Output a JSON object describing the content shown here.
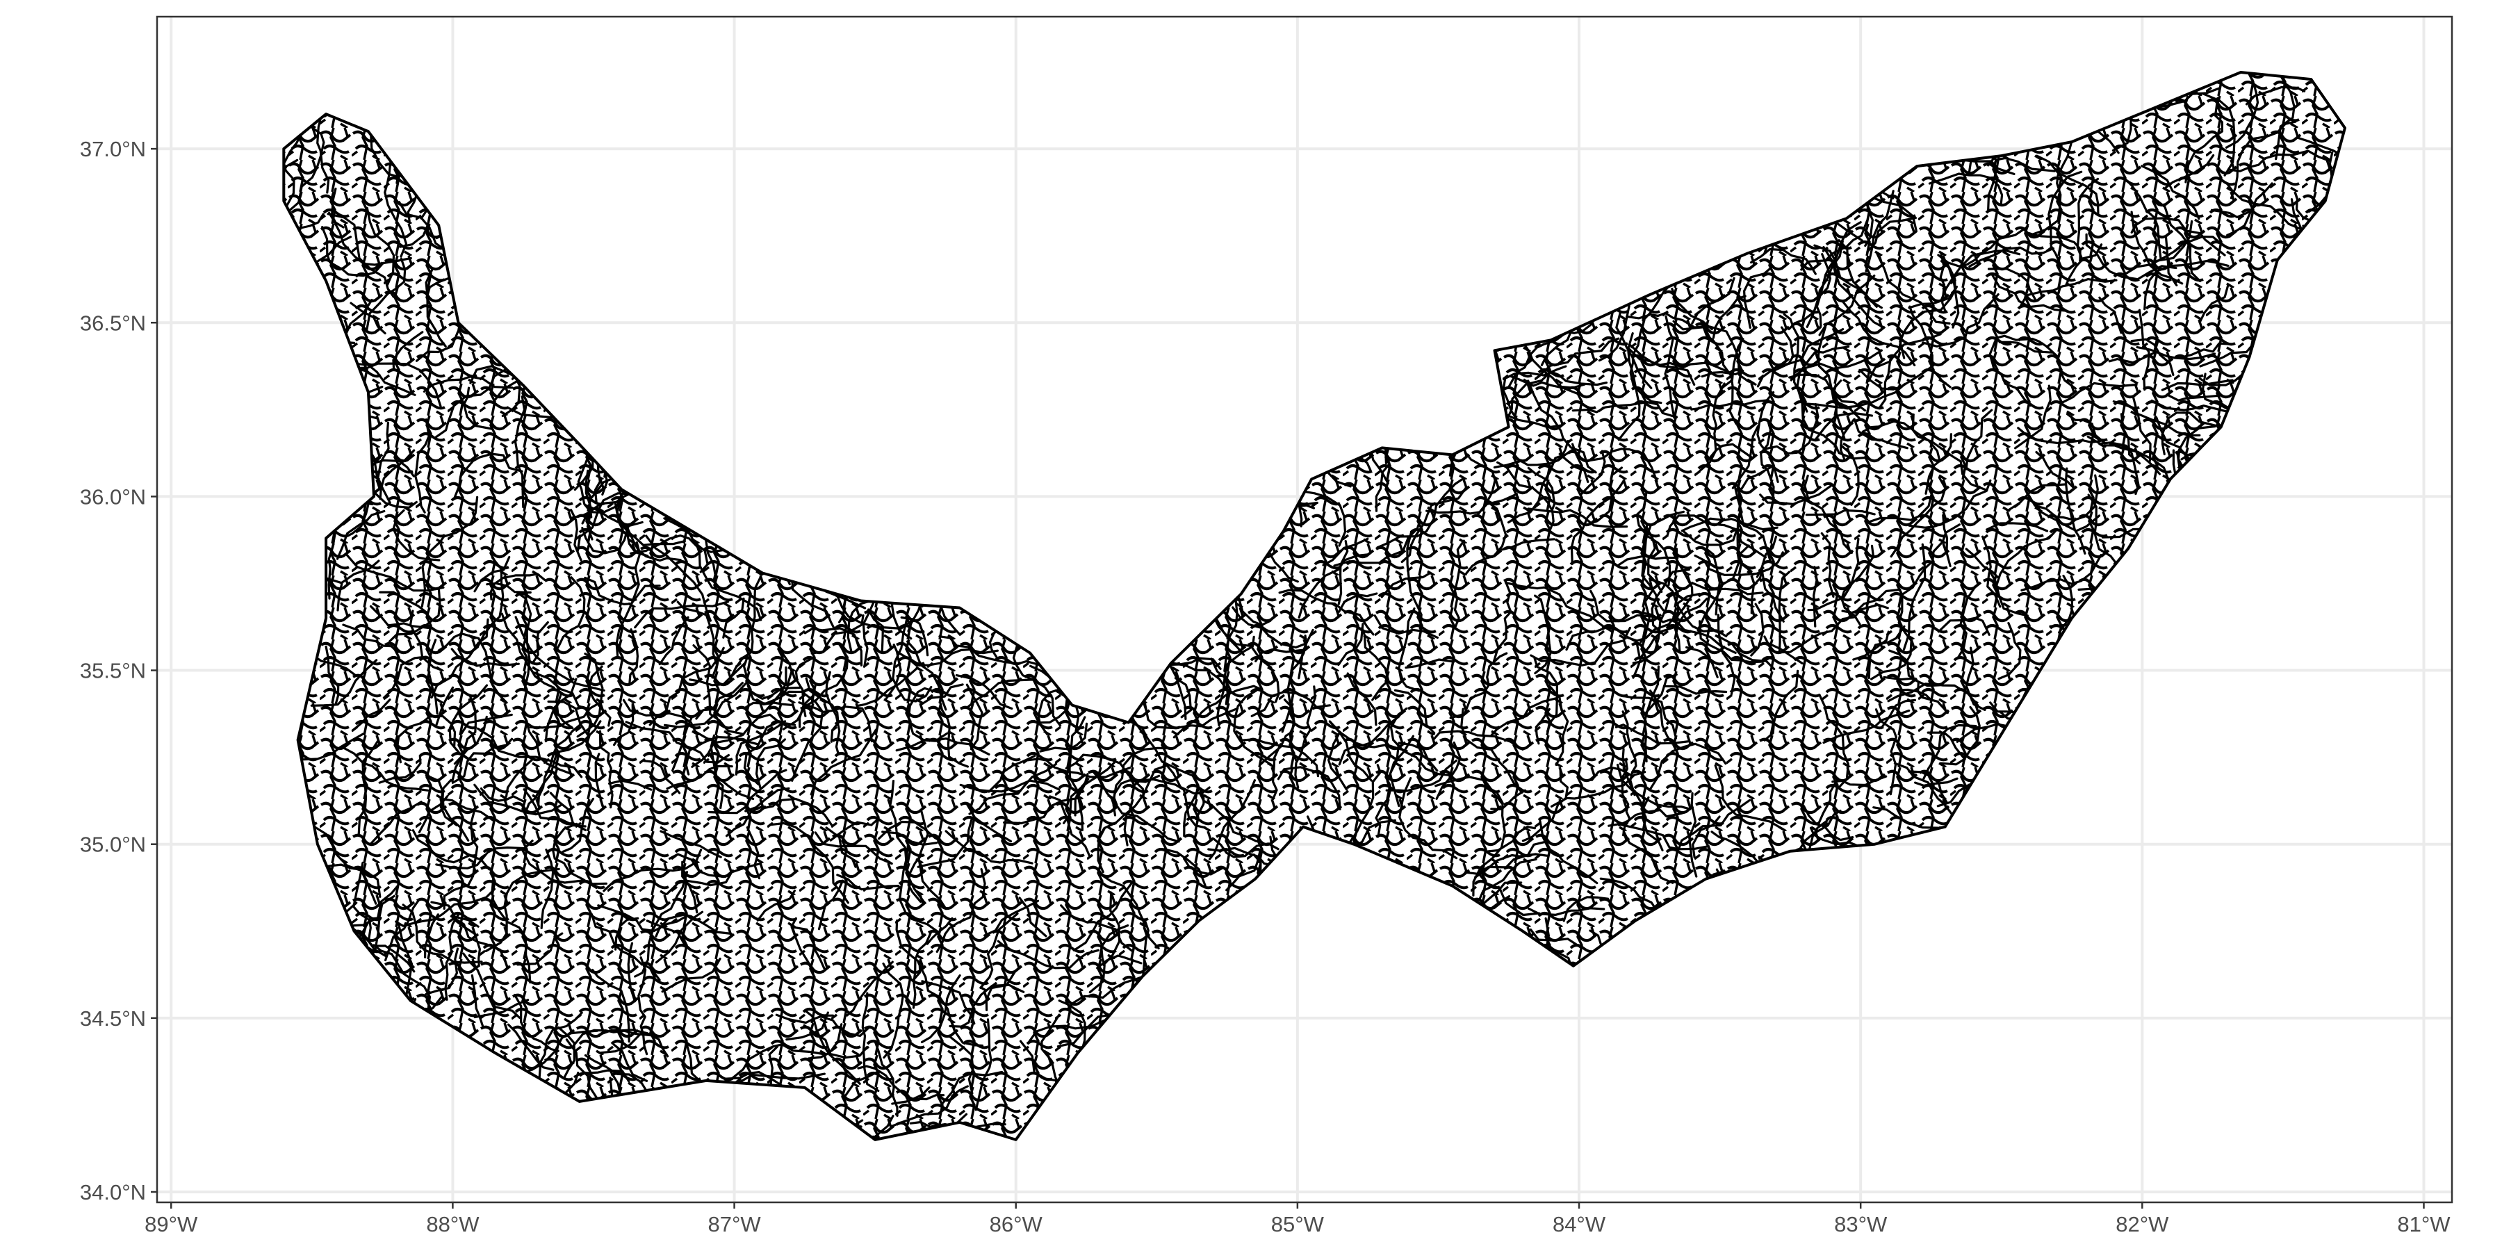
{
  "map": {
    "type": "map",
    "subject": "stream network",
    "x_axis": {
      "ticks": [
        {
          "value": -89,
          "label": "89°W"
        },
        {
          "value": -88,
          "label": "88°W"
        },
        {
          "value": -87,
          "label": "87°W"
        },
        {
          "value": -86,
          "label": "86°W"
        },
        {
          "value": -85,
          "label": "85°W"
        },
        {
          "value": -84,
          "label": "84°W"
        },
        {
          "value": -83,
          "label": "83°W"
        },
        {
          "value": -82,
          "label": "82°W"
        },
        {
          "value": -81,
          "label": "81°W"
        }
      ],
      "range": [
        -89.05,
        -80.9
      ]
    },
    "y_axis": {
      "ticks": [
        {
          "value": 34.0,
          "label": "34.0°N"
        },
        {
          "value": 34.5,
          "label": "34.5°N"
        },
        {
          "value": 35.0,
          "label": "35.0°N"
        },
        {
          "value": 35.5,
          "label": "35.5°N"
        },
        {
          "value": 36.0,
          "label": "36.0°N"
        },
        {
          "value": 36.5,
          "label": "36.5°N"
        },
        {
          "value": 37.0,
          "label": "37.0°N"
        }
      ],
      "range": [
        33.97,
        37.38
      ]
    },
    "grid": true,
    "line_color": "#000000",
    "grid_color": "#ebebeb",
    "background": "#ffffff",
    "region_outline": [
      [
        -88.6,
        37.0
      ],
      [
        -88.45,
        37.1
      ],
      [
        -88.3,
        37.05
      ],
      [
        -88.05,
        36.78
      ],
      [
        -87.98,
        36.5
      ],
      [
        -87.75,
        36.32
      ],
      [
        -87.55,
        36.15
      ],
      [
        -87.4,
        36.02
      ],
      [
        -87.15,
        35.9
      ],
      [
        -86.9,
        35.78
      ],
      [
        -86.55,
        35.7
      ],
      [
        -86.2,
        35.68
      ],
      [
        -85.95,
        35.55
      ],
      [
        -85.8,
        35.4
      ],
      [
        -85.6,
        35.35
      ],
      [
        -85.45,
        35.52
      ],
      [
        -85.2,
        35.72
      ],
      [
        -85.05,
        35.9
      ],
      [
        -84.95,
        36.05
      ],
      [
        -84.7,
        36.14
      ],
      [
        -84.45,
        36.12
      ],
      [
        -84.25,
        36.2
      ],
      [
        -84.3,
        36.42
      ],
      [
        -84.1,
        36.45
      ],
      [
        -83.75,
        36.58
      ],
      [
        -83.4,
        36.7
      ],
      [
        -83.05,
        36.8
      ],
      [
        -82.8,
        36.95
      ],
      [
        -82.5,
        36.98
      ],
      [
        -82.25,
        37.02
      ],
      [
        -81.95,
        37.12
      ],
      [
        -81.65,
        37.22
      ],
      [
        -81.4,
        37.2
      ],
      [
        -81.28,
        37.06
      ],
      [
        -81.35,
        36.85
      ],
      [
        -81.52,
        36.68
      ],
      [
        -81.62,
        36.4
      ],
      [
        -81.72,
        36.2
      ],
      [
        -81.9,
        36.05
      ],
      [
        -82.05,
        35.85
      ],
      [
        -82.25,
        35.65
      ],
      [
        -82.4,
        35.45
      ],
      [
        -82.55,
        35.25
      ],
      [
        -82.7,
        35.05
      ],
      [
        -82.95,
        35.0
      ],
      [
        -83.25,
        34.98
      ],
      [
        -83.55,
        34.9
      ],
      [
        -83.8,
        34.78
      ],
      [
        -84.02,
        34.65
      ],
      [
        -84.2,
        34.75
      ],
      [
        -84.45,
        34.88
      ],
      [
        -84.8,
        35.0
      ],
      [
        -84.98,
        35.05
      ],
      [
        -85.15,
        34.9
      ],
      [
        -85.35,
        34.78
      ],
      [
        -85.55,
        34.62
      ],
      [
        -85.78,
        34.4
      ],
      [
        -86.0,
        34.15
      ],
      [
        -86.2,
        34.2
      ],
      [
        -86.5,
        34.15
      ],
      [
        -86.75,
        34.3
      ],
      [
        -87.1,
        34.32
      ],
      [
        -87.55,
        34.26
      ],
      [
        -87.85,
        34.4
      ],
      [
        -88.15,
        34.55
      ],
      [
        -88.35,
        34.75
      ],
      [
        -88.48,
        35.0
      ],
      [
        -88.55,
        35.3
      ],
      [
        -88.45,
        35.65
      ],
      [
        -88.45,
        35.88
      ],
      [
        -88.28,
        36.0
      ],
      [
        -88.3,
        36.3
      ],
      [
        -88.45,
        36.62
      ],
      [
        -88.6,
        36.85
      ]
    ]
  }
}
